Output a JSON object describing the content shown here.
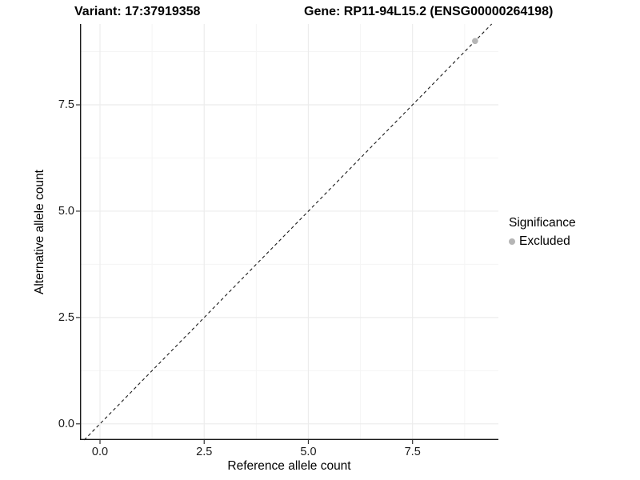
{
  "header": {
    "variant_title": "Variant: 17:37919358",
    "gene_title": "Gene: RP11-94L15.2 (ENSG00000264198)"
  },
  "chart_data": {
    "type": "scatter",
    "title": "Variant: 17:37919358  /  Gene: RP11-94L15.2 (ENSG00000264198)",
    "xlabel": "Reference allele count",
    "ylabel": "Alternative allele count",
    "xlim": [
      -0.48,
      9.56
    ],
    "ylim": [
      -0.38,
      9.4
    ],
    "x_ticks": {
      "values": [
        0,
        2.5,
        5,
        7.5
      ],
      "labels": [
        "0.0",
        "2.5",
        "5.0",
        "7.5"
      ]
    },
    "y_ticks": {
      "values": [
        0,
        2.5,
        5,
        7.5
      ],
      "labels": [
        "0.0",
        "2.5",
        "5.0",
        "7.5"
      ]
    },
    "x_minor_ticks": [
      1.25,
      3.75,
      6.25,
      8.75
    ],
    "y_minor_ticks": [
      1.25,
      3.75,
      6.25,
      8.75
    ],
    "grid": "major+minor",
    "identity_line": {
      "equation": "y = x",
      "style": "dashed",
      "color": "#1a1a1a"
    },
    "series": [
      {
        "name": "Excluded",
        "color": "#b5b5b5",
        "points": [
          {
            "x": 9,
            "y": 9
          }
        ]
      }
    ],
    "legend": {
      "title": "Significance",
      "position": "right",
      "items": [
        {
          "label": "Excluded",
          "color": "#b5b5b5"
        }
      ]
    }
  },
  "style_colors": {
    "grid_major": "#ececec",
    "grid_minor": "#f5f5f5",
    "axis_line": "#1a1a1a",
    "tick_mark": "#333333"
  }
}
